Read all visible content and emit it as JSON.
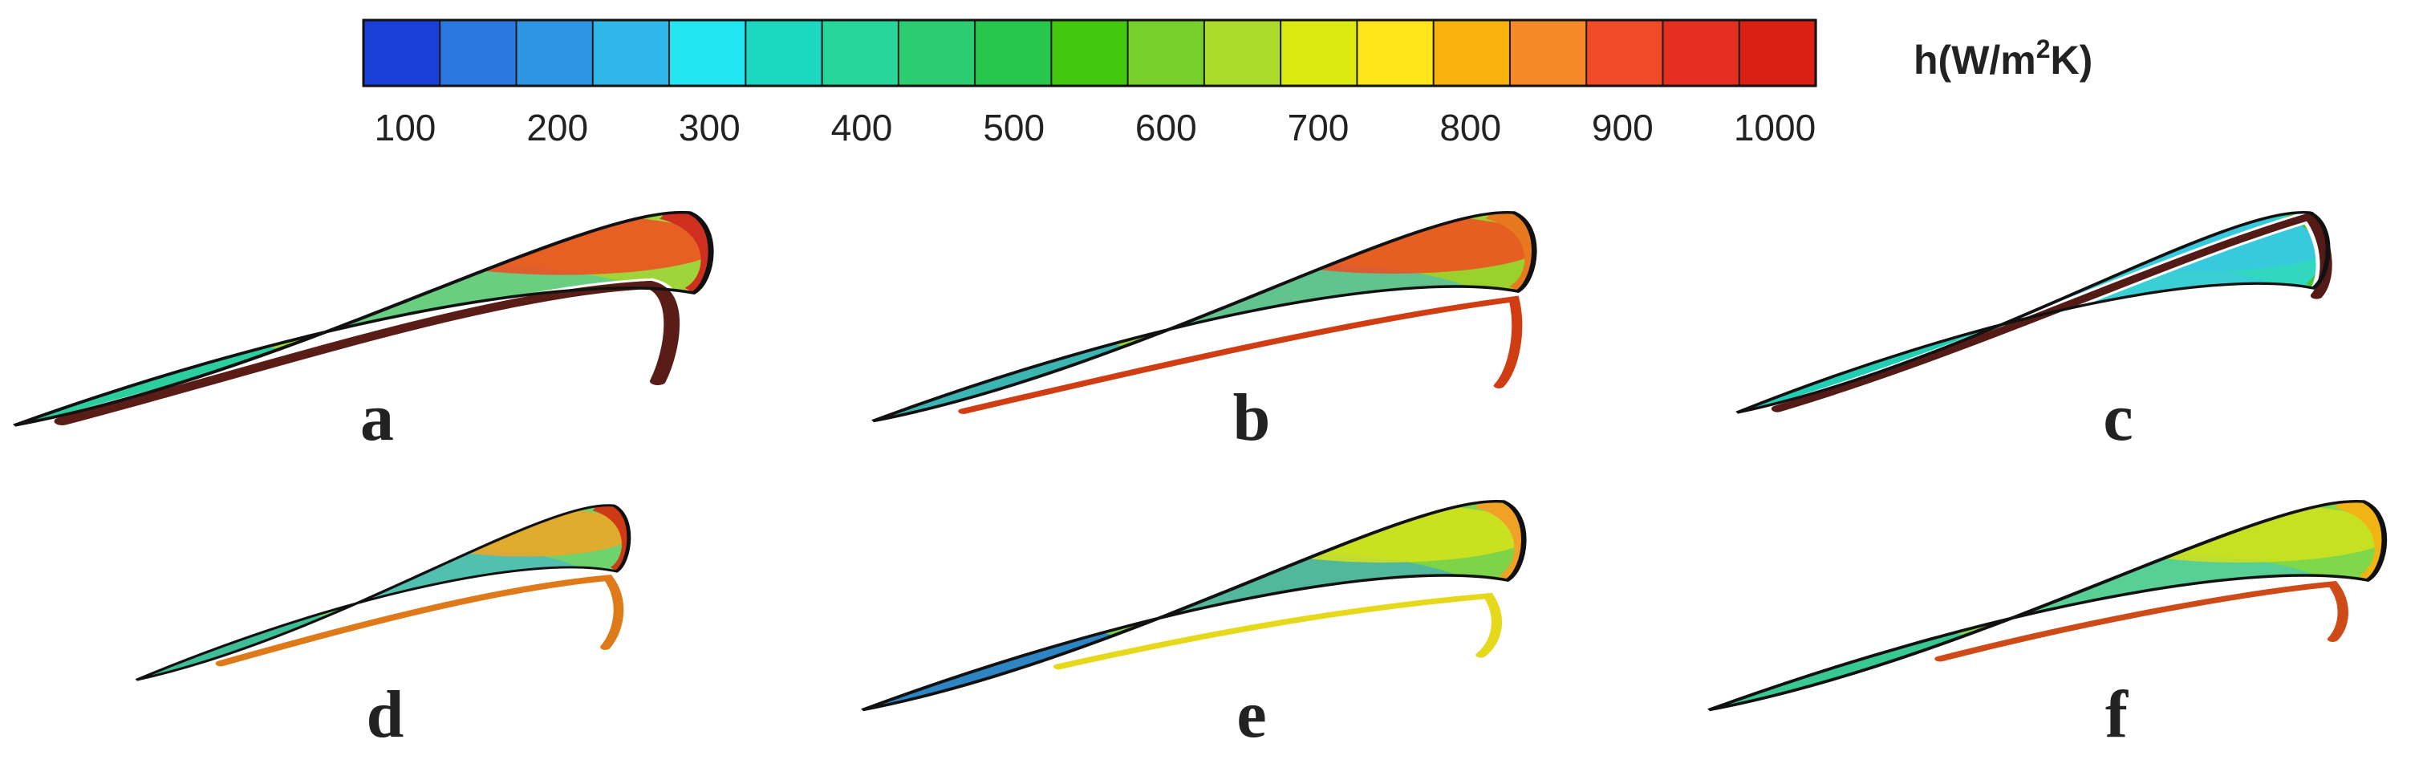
{
  "colorbar": {
    "ticks": [
      "100",
      "200",
      "300",
      "400",
      "500",
      "600",
      "700",
      "800",
      "900",
      "1000"
    ],
    "unit": {
      "prefix": "h(W/m",
      "sup": "2",
      "suffix": "K)"
    },
    "colors": [
      "#1a3fd8",
      "#2a78df",
      "#2e94e4",
      "#2fb6e8",
      "#22e6f1",
      "#1dd8c0",
      "#27d69a",
      "#2ccc73",
      "#27c64d",
      "#41c80f",
      "#76cf2c",
      "#acdb2b",
      "#dbe812",
      "#ffe31b",
      "#f7b20c",
      "#f58827",
      "#f04a26",
      "#e42e1f",
      "#da2013"
    ]
  },
  "panels": [
    {
      "label": "a",
      "surface": "#9fd43a",
      "hot": "#f24b20",
      "edge": "#cf2f1f",
      "channel": "#5a1c16",
      "tip": "#16ccb1",
      "cool": "#3dc9b8"
    },
    {
      "label": "b",
      "surface": "#9ad12d",
      "hot": "#f24a21",
      "edge": "#e7781e",
      "channel": "#d03d12",
      "tip": "#2ab0ca",
      "cool": "#33b9e0"
    },
    {
      "label": "c",
      "surface": "#30d7c1",
      "hot": "#38c8e0",
      "edge": "#4cc13b",
      "channel": "#541a16",
      "tip": "#1fccb0",
      "cool": "#42c9e4"
    },
    {
      "label": "d",
      "surface": "#6ed36c",
      "hot": "#f4a422",
      "edge": "#ce3a14",
      "channel": "#de7a19",
      "tip": "#36ba9d",
      "cool": "#3bb1e6"
    },
    {
      "label": "e",
      "surface": "#7ed447",
      "hot": "#d7e31b",
      "edge": "#f0a126",
      "channel": "#e6d81a",
      "tip": "#1f78d9",
      "cool": "#2ba0e0"
    },
    {
      "label": "f",
      "surface": "#7fd84a",
      "hot": "#d2e21b",
      "edge": "#f2b315",
      "channel": "#ce4a16",
      "tip": "#2cc59e",
      "cool": "#38c8d3"
    }
  ]
}
